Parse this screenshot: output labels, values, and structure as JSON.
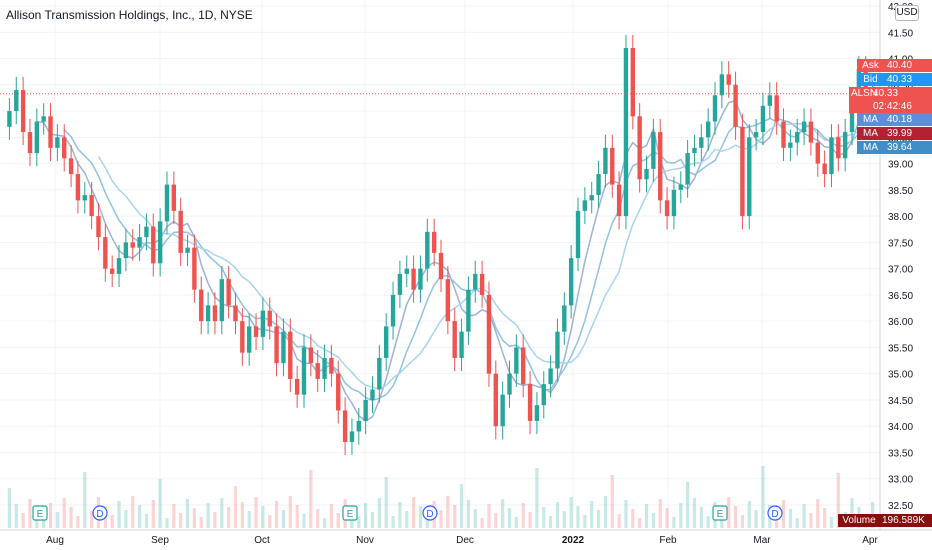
{
  "title": "Allison Transmission Holdings, Inc., 1D, NYSE",
  "currency": "USD",
  "colors": {
    "up": "#26a69a",
    "down": "#ef5350",
    "ma1": "#9bb3d6",
    "ma2": "#8fc3e0",
    "ma3": "#a9d3ee",
    "ask": "#ef5350",
    "bid": "#2196f3",
    "volume_tag": "#880e0e"
  },
  "price_axis": {
    "min": 32.5,
    "max": 42.0,
    "labels": [
      "42.00",
      "41.50",
      "41.00",
      "40.50",
      "40.00",
      "39.50",
      "39.00",
      "38.50",
      "38.00",
      "37.50",
      "37.00",
      "36.50",
      "36.00",
      "35.50",
      "35.00",
      "34.50",
      "34.00",
      "33.50",
      "33.00",
      "32.50"
    ]
  },
  "time_axis": [
    "Aug",
    "Sep",
    "Oct",
    "Nov",
    "Dec",
    "2022",
    "Feb",
    "Mar",
    "Apr"
  ],
  "price_tags": {
    "ask": {
      "label": "Ask",
      "value": "40.40"
    },
    "bid": {
      "label": "Bid",
      "value": "40.33"
    },
    "last": {
      "label": "ALSN",
      "value": "40.33",
      "countdown": "02:42:46"
    },
    "ma1": {
      "label": "MA",
      "value": "40.18"
    },
    "ma2": {
      "label": "MA",
      "value": "39.99"
    },
    "ma3": {
      "label": "MA",
      "value": "39.64"
    }
  },
  "volume": {
    "label": "Volume",
    "value": "196.589K"
  },
  "events": [
    {
      "type": "E",
      "month": "Aug"
    },
    {
      "type": "D",
      "month": "Aug"
    },
    {
      "type": "E",
      "month": "Oct"
    },
    {
      "type": "D",
      "month": "Nov"
    },
    {
      "type": "E",
      "month": "Feb"
    },
    {
      "type": "D",
      "month": "Feb"
    }
  ],
  "chart_data": {
    "type": "candlestick",
    "series": [
      {
        "name": "ALSN",
        "close": [
          40.0,
          40.4,
          39.6,
          39.2,
          39.8,
          39.9,
          39.3,
          39.5,
          39.1,
          38.8,
          38.3,
          38.4,
          38.0,
          37.6,
          37.0,
          36.9,
          37.2,
          37.5,
          37.4,
          37.6,
          37.8,
          37.1,
          37.9,
          38.6,
          38.1,
          37.3,
          37.4,
          36.6,
          36.0,
          36.3,
          36.0,
          36.8,
          36.3,
          36.0,
          35.4,
          35.9,
          35.7,
          36.2,
          35.9,
          35.2,
          35.8,
          34.9,
          34.6,
          35.5,
          35.2,
          34.9,
          35.3,
          35.0,
          34.3,
          33.7,
          33.9,
          34.1,
          34.5,
          34.7,
          35.3,
          35.9,
          36.5,
          36.9,
          37.0,
          36.6,
          37.0,
          37.7,
          37.3,
          36.8,
          36.0,
          35.3,
          35.8,
          36.6,
          36.9,
          36.5,
          35.0,
          34.0,
          34.6,
          35.0,
          35.5,
          34.8,
          34.1,
          34.4,
          34.8,
          35.1,
          35.8,
          36.3,
          37.2,
          38.1,
          38.3,
          38.4,
          38.8,
          39.3,
          38.6,
          38.0,
          41.2,
          39.9,
          38.7,
          38.9,
          39.6,
          38.3,
          38.0,
          38.5,
          38.6,
          39.2,
          39.3,
          39.5,
          39.8,
          40.3,
          40.7,
          40.5,
          39.7,
          38.0,
          39.5,
          39.6,
          40.1,
          40.3,
          39.8,
          39.3,
          39.4,
          39.6,
          39.8,
          39.4,
          39.0,
          38.8,
          39.5,
          39.1,
          39.6,
          40.1,
          40.8,
          40.1,
          40.3
        ],
        "range": [
          "Jul 2021",
          "Mar 2022"
        ]
      }
    ],
    "ylabel": "",
    "xlabel": "",
    "ylim": [
      32.5,
      42.0
    ],
    "grid": true
  }
}
